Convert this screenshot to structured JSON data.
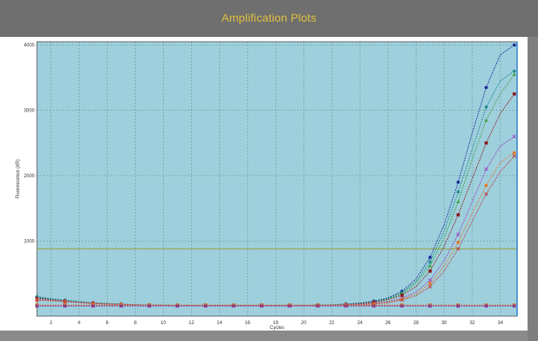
{
  "window": {
    "title": "Amplification Plots"
  },
  "chart_data": {
    "type": "line",
    "title": "Amplification Plots",
    "xlabel": "Cycles",
    "ylabel": "Fluorescence (dR)",
    "xlim": [
      1,
      35.2
    ],
    "ylim": [
      -150,
      4050
    ],
    "xticks": [
      2,
      4,
      6,
      8,
      10,
      12,
      14,
      16,
      18,
      20,
      22,
      24,
      26,
      28,
      30,
      32,
      34
    ],
    "yticks": [
      1000,
      2000,
      3000,
      4000
    ],
    "grid": true,
    "plot_background": "#9ecfdc",
    "threshold": {
      "value": 880,
      "color": "#9a9a2a"
    },
    "x": [
      1,
      2,
      3,
      4,
      5,
      6,
      7,
      8,
      9,
      10,
      11,
      12,
      13,
      14,
      15,
      16,
      17,
      18,
      19,
      20,
      21,
      22,
      23,
      24,
      25,
      26,
      27,
      28,
      29,
      30,
      31,
      32,
      33,
      34,
      35
    ],
    "series": [
      {
        "color": "#1a2a9a",
        "marker": "circle",
        "values": [
          140,
          110,
          90,
          70,
          50,
          40,
          30,
          25,
          20,
          15,
          15,
          15,
          15,
          15,
          15,
          15,
          15,
          15,
          15,
          15,
          20,
          25,
          35,
          50,
          80,
          130,
          230,
          420,
          750,
          1250,
          1900,
          2650,
          3350,
          3850,
          4000
        ]
      },
      {
        "color": "#1a8a8a",
        "marker": "diamond",
        "values": [
          150,
          120,
          95,
          75,
          55,
          45,
          35,
          28,
          22,
          18,
          16,
          15,
          15,
          15,
          15,
          15,
          15,
          15,
          15,
          15,
          18,
          22,
          30,
          45,
          70,
          120,
          210,
          380,
          680,
          1150,
          1750,
          2400,
          3050,
          3450,
          3600
        ]
      },
      {
        "color": "#3aa03a",
        "marker": "triangle",
        "values": [
          130,
          105,
          85,
          65,
          50,
          40,
          32,
          26,
          20,
          18,
          16,
          15,
          15,
          15,
          15,
          15,
          15,
          15,
          15,
          15,
          18,
          22,
          28,
          40,
          65,
          110,
          190,
          350,
          620,
          1050,
          1600,
          2250,
          2850,
          3250,
          3550
        ]
      },
      {
        "color": "#8a1a1a",
        "marker": "square",
        "values": [
          120,
          100,
          80,
          62,
          48,
          38,
          30,
          25,
          20,
          18,
          16,
          15,
          15,
          15,
          15,
          15,
          15,
          15,
          15,
          15,
          17,
          20,
          26,
          38,
          60,
          100,
          170,
          300,
          540,
          920,
          1400,
          1950,
          2500,
          2950,
          3250
        ]
      },
      {
        "color": "#9a40c0",
        "marker": "x",
        "values": [
          110,
          95,
          78,
          60,
          46,
          36,
          28,
          24,
          20,
          18,
          16,
          15,
          15,
          15,
          15,
          15,
          15,
          15,
          15,
          15,
          16,
          18,
          22,
          30,
          45,
          75,
          125,
          220,
          400,
          700,
          1100,
          1600,
          2100,
          2450,
          2600
        ]
      },
      {
        "color": "#e07a2a",
        "marker": "circle",
        "values": [
          100,
          90,
          72,
          56,
          44,
          34,
          27,
          22,
          19,
          17,
          15,
          15,
          15,
          15,
          15,
          15,
          15,
          15,
          15,
          15,
          15,
          17,
          20,
          27,
          40,
          65,
          110,
          190,
          350,
          620,
          980,
          1420,
          1850,
          2200,
          2350
        ]
      },
      {
        "color": "#c03a3a",
        "marker": "x",
        "values": [
          95,
          85,
          70,
          55,
          42,
          33,
          26,
          22,
          18,
          16,
          15,
          15,
          15,
          15,
          15,
          15,
          15,
          15,
          15,
          15,
          15,
          16,
          18,
          24,
          35,
          55,
          95,
          165,
          300,
          540,
          880,
          1300,
          1720,
          2060,
          2300
        ]
      },
      {
        "color": "#d02a8a",
        "marker": "circle",
        "values": [
          10,
          10,
          10,
          10,
          10,
          10,
          10,
          10,
          10,
          10,
          10,
          10,
          10,
          10,
          10,
          10,
          10,
          10,
          10,
          10,
          10,
          10,
          10,
          10,
          10,
          10,
          10,
          10,
          10,
          10,
          10,
          10,
          10,
          10,
          10
        ]
      },
      {
        "color": "#d07a20",
        "marker": "square",
        "values": [
          20,
          20,
          20,
          20,
          20,
          20,
          20,
          20,
          20,
          20,
          20,
          20,
          20,
          20,
          20,
          20,
          20,
          20,
          20,
          20,
          20,
          20,
          20,
          20,
          20,
          20,
          20,
          20,
          20,
          20,
          20,
          20,
          20,
          20,
          20
        ]
      },
      {
        "color": "#7a2aa0",
        "marker": "x",
        "values": [
          5,
          5,
          5,
          5,
          5,
          5,
          5,
          5,
          5,
          5,
          5,
          5,
          5,
          5,
          5,
          5,
          5,
          5,
          5,
          5,
          5,
          5,
          5,
          5,
          5,
          5,
          5,
          5,
          5,
          5,
          5,
          5,
          5,
          5,
          5
        ]
      }
    ]
  }
}
